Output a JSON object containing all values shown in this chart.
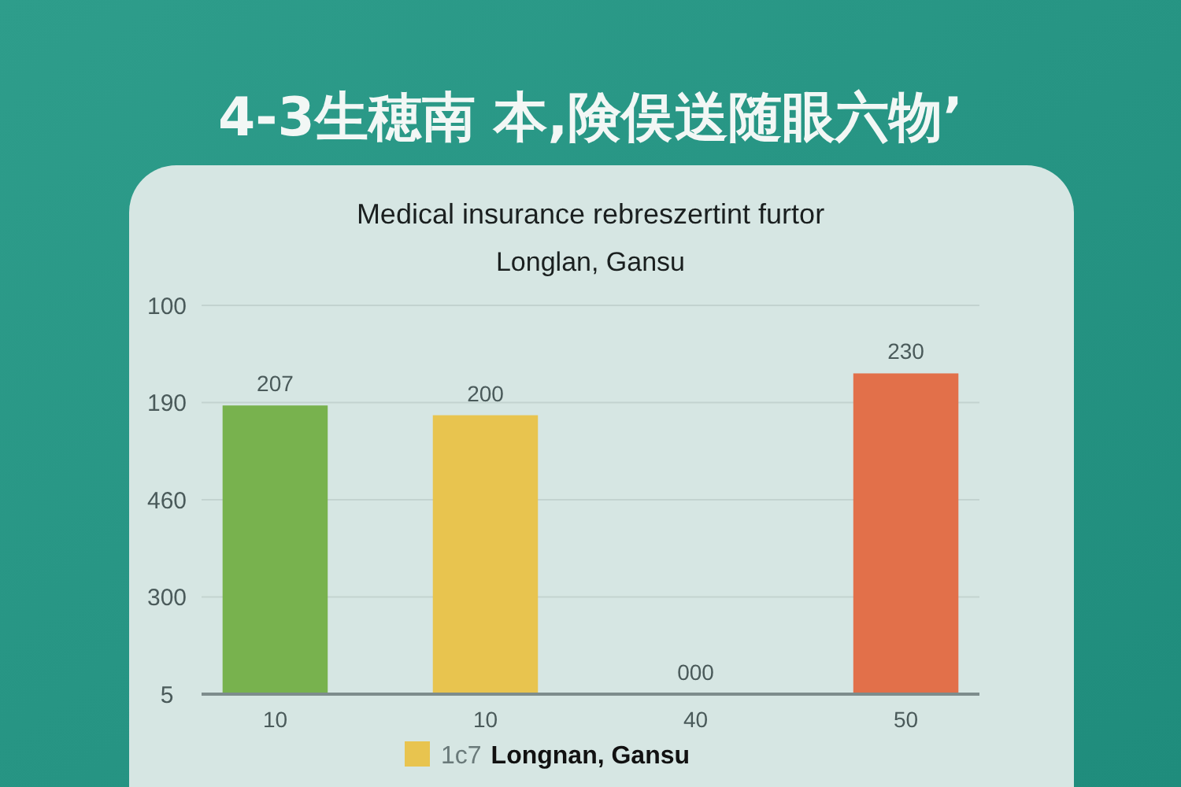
{
  "chart_data": {
    "type": "bar",
    "title": "4-3生穂南 本,険俣送随眼六物’",
    "subtitle": "Medical insurance rebreszertint furtor\nLonglan, Gansu",
    "categories": [
      "10",
      "10",
      "40",
      "50"
    ],
    "series": [
      {
        "name": "1c7 Longnan, Gansu",
        "color": "#e8c44f",
        "colors": [
          "#78b24e",
          "#e8c44f",
          "#e89a48",
          "#e2704a"
        ],
        "values": [
          207,
          200,
          0,
          230
        ],
        "value_labels": [
          "207",
          "200",
          "000",
          "230"
        ]
      }
    ],
    "annotations": [
      "5",
      "300",
      "460",
      "190",
      "100"
    ],
    "grid": "y",
    "legend": "bottom"
  }
}
